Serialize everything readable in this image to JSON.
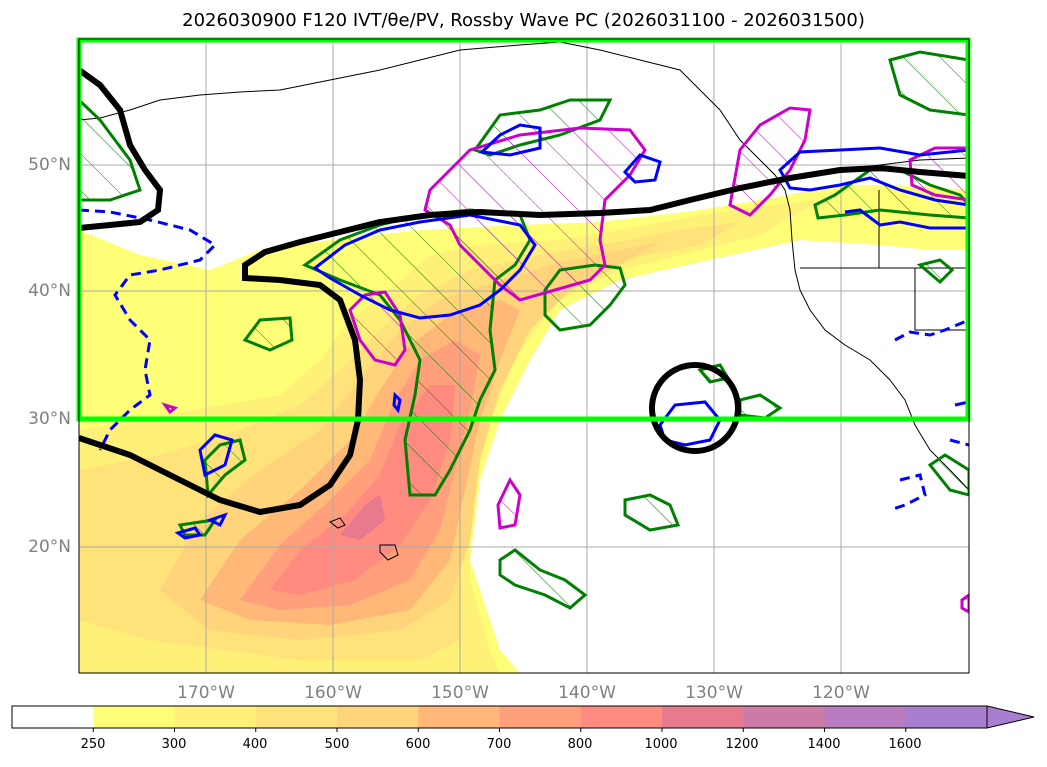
{
  "title": "2026030900 F120 IVT/θe/PV, Rossby Wave PC (2026031100 - 2026031500)",
  "lat_labels": [
    "50°N",
    "40°N",
    "30°N",
    "20°N"
  ],
  "lon_labels": [
    "170°W",
    "160°W",
    "150°W",
    "140°W",
    "130°W",
    "120°W"
  ],
  "colorbar": {
    "levels": [
      "250",
      "300",
      "400",
      "500",
      "600",
      "700",
      "800",
      "1000",
      "1200",
      "1400",
      "1600"
    ],
    "colors": [
      "#ffffff",
      "#ffff77",
      "#fff077",
      "#ffe27a",
      "#ffd47b",
      "#ffb878",
      "#ff9f7c",
      "#ff8a80",
      "#e77b8d",
      "#cc7aa6",
      "#b97bc0",
      "#a87fd0"
    ],
    "extend": "max"
  },
  "colors": {
    "box": "#00ff00",
    "grid": "#aaaaaa",
    "rossby": "#000000",
    "pv_anomaly": "#0000ff",
    "theta_e": "#008000",
    "magenta": "#cc00cc"
  }
}
